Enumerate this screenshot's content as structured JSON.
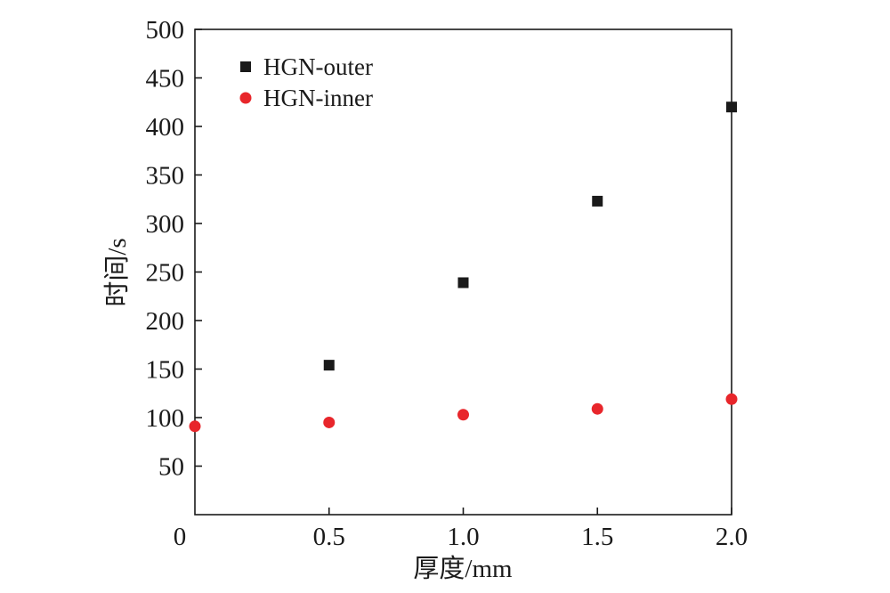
{
  "chart_data": {
    "type": "scatter",
    "xlabel": "厚度/mm",
    "ylabel": "时间/s",
    "xlim": [
      0,
      2.0
    ],
    "ylim": [
      0,
      500
    ],
    "x_ticks": [
      {
        "value": 0,
        "label": "0"
      },
      {
        "value": 0.5,
        "label": "0.5"
      },
      {
        "value": 1.0,
        "label": "1.0"
      },
      {
        "value": 1.5,
        "label": "1.5"
      },
      {
        "value": 2.0,
        "label": "2.0"
      }
    ],
    "y_ticks": [
      {
        "value": 50,
        "label": "50"
      },
      {
        "value": 100,
        "label": "100"
      },
      {
        "value": 150,
        "label": "150"
      },
      {
        "value": 200,
        "label": "200"
      },
      {
        "value": 250,
        "label": "250"
      },
      {
        "value": 300,
        "label": "300"
      },
      {
        "value": 350,
        "label": "350"
      },
      {
        "value": 400,
        "label": "400"
      },
      {
        "value": 450,
        "label": "450"
      },
      {
        "value": 500,
        "label": "500"
      }
    ],
    "grid": false,
    "legend_position": "top-left",
    "series": [
      {
        "name": "HGN-outer",
        "marker": "square",
        "color": "#1a1a1a",
        "points": [
          {
            "x": 0.5,
            "y": 154
          },
          {
            "x": 1.0,
            "y": 239
          },
          {
            "x": 1.5,
            "y": 323
          },
          {
            "x": 2.0,
            "y": 420
          }
        ]
      },
      {
        "name": "HGN-inner",
        "marker": "circle",
        "color": "#e8262b",
        "points": [
          {
            "x": 0,
            "y": 91
          },
          {
            "x": 0.5,
            "y": 95
          },
          {
            "x": 1.0,
            "y": 103
          },
          {
            "x": 1.5,
            "y": 109
          },
          {
            "x": 2.0,
            "y": 119
          }
        ]
      }
    ]
  }
}
